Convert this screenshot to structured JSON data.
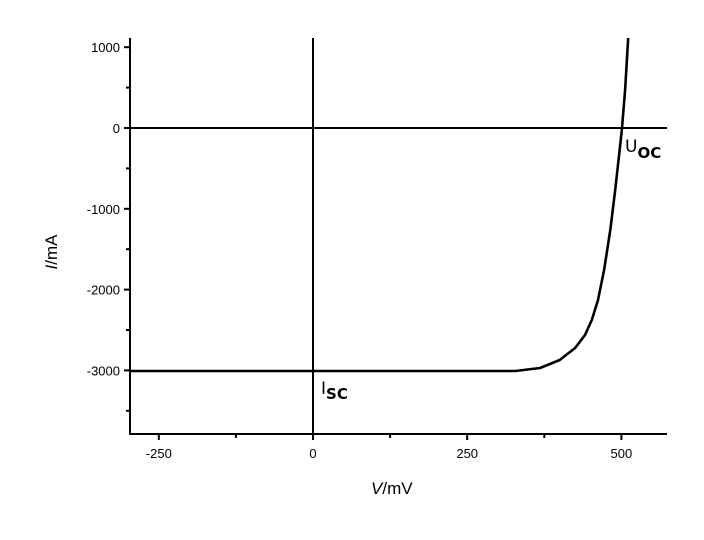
{
  "chart_data": {
    "type": "line",
    "title": "",
    "xlabel": "V/mV",
    "xlabel_italic_part": "V",
    "xlabel_unit_part": "/mV",
    "ylabel": "I/mA",
    "ylabel_italic_part": "I",
    "ylabel_unit_part": "/mA",
    "xlim": [
      -297,
      574
    ],
    "ylim": [
      -3800,
      1120
    ],
    "x_ticks": [
      -250,
      0,
      250,
      500
    ],
    "x_tick_labels": [
      "-250",
      "0",
      "250",
      "500"
    ],
    "y_ticks": [
      1000,
      0,
      -1000,
      -2000,
      -3000
    ],
    "y_tick_labels": [
      "1000",
      "0",
      "-1000",
      "-2000",
      "-3000"
    ],
    "grid": false,
    "legend": null,
    "reference_lines": [
      {
        "orientation": "horizontal",
        "value": 0
      },
      {
        "orientation": "vertical",
        "value": 0
      }
    ],
    "annotations": [
      {
        "text": "I",
        "subscript": "SC",
        "x": 15,
        "y": -3250
      },
      {
        "text": "U",
        "subscript": "OC",
        "x": 507,
        "y": -230
      }
    ],
    "series": [
      {
        "name": "I-V curve",
        "color": "#000000",
        "x": [
          -297,
          28,
          328,
          368,
          400,
          425,
          441,
          452,
          462,
          472,
          482,
          490,
          498,
          501,
          506,
          511
        ],
        "y": [
          -3007,
          -3007,
          -3007,
          -2970,
          -2871,
          -2723,
          -2562,
          -2376,
          -2129,
          -1757,
          -1262,
          -767,
          -210,
          0,
          470,
          1114
        ]
      }
    ]
  },
  "labels": {
    "x_axis_title_italic": "V",
    "x_axis_title_unit": "/mV",
    "y_axis_title_italic": "I",
    "y_axis_title_unit": "/mA",
    "isc_main": "I",
    "isc_sub": "SC",
    "uoc_main": "U",
    "uoc_sub": "OC"
  },
  "colors": {
    "line": "#000000",
    "axis": "#000000",
    "background": "#ffffff"
  }
}
